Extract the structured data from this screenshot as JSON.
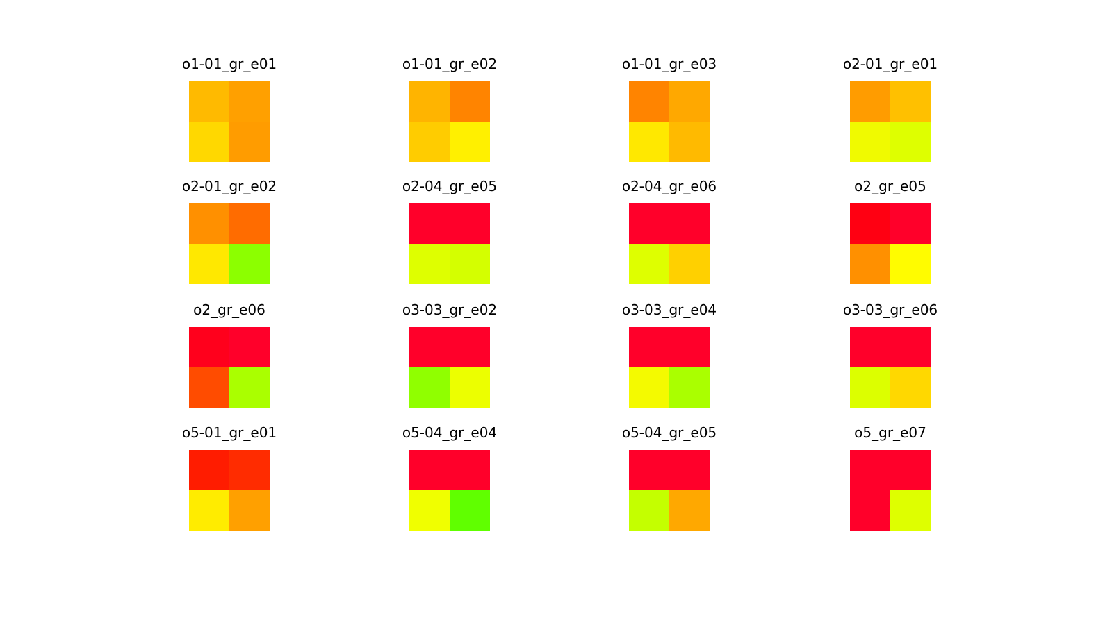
{
  "chart_data": {
    "type": "heatmap",
    "colormap": "red-yellow-green",
    "grid": false,
    "panels": [
      {
        "title": "o1-01_gr_e01",
        "cells": [
          [
            "#ffba00",
            "#ffa000"
          ],
          [
            "#ffd800",
            "#ff9c00"
          ]
        ]
      },
      {
        "title": "o1-01_gr_e02",
        "cells": [
          [
            "#ffb400",
            "#ff8400"
          ],
          [
            "#ffcc00",
            "#fff000"
          ]
        ]
      },
      {
        "title": "o1-01_gr_e03",
        "cells": [
          [
            "#ff8400",
            "#ffa800"
          ],
          [
            "#ffe800",
            "#ffba00"
          ]
        ]
      },
      {
        "title": "o2-01_gr_e01",
        "cells": [
          [
            "#ff9c00",
            "#ffc000"
          ],
          [
            "#f0fa00",
            "#deff00"
          ]
        ]
      },
      {
        "title": "o2-01_gr_e02",
        "cells": [
          [
            "#ff9000",
            "#ff6c00"
          ],
          [
            "#ffe800",
            "#8cff00"
          ]
        ]
      },
      {
        "title": "o2-04_gr_e05",
        "cells": [
          [
            "#ff002a",
            "#ff002a"
          ],
          [
            "#deff00",
            "#d4ff00"
          ]
        ]
      },
      {
        "title": "o2-04_gr_e06",
        "cells": [
          [
            "#ff002a",
            "#ff002a"
          ],
          [
            "#deff00",
            "#ffd000"
          ]
        ]
      },
      {
        "title": "o2_gr_e05",
        "cells": [
          [
            "#ff0012",
            "#ff002a"
          ],
          [
            "#ff9000",
            "#fffc00"
          ]
        ]
      },
      {
        "title": "o2_gr_e06",
        "cells": [
          [
            "#ff001c",
            "#ff002a"
          ],
          [
            "#ff4c00",
            "#aaff00"
          ]
        ]
      },
      {
        "title": "o3-03_gr_e02",
        "cells": [
          [
            "#ff002a",
            "#ff002a"
          ],
          [
            "#90ff00",
            "#ecff00"
          ]
        ]
      },
      {
        "title": "o3-03_gr_e04",
        "cells": [
          [
            "#ff002a",
            "#ff002a"
          ],
          [
            "#f4fa00",
            "#aaff00"
          ]
        ]
      },
      {
        "title": "o3-03_gr_e06",
        "cells": [
          [
            "#ff002a",
            "#ff002a"
          ],
          [
            "#dcff00",
            "#ffd800"
          ]
        ]
      },
      {
        "title": "o5-01_gr_e01",
        "cells": [
          [
            "#ff1c00",
            "#ff2c00"
          ],
          [
            "#ffec00",
            "#ffa000"
          ]
        ]
      },
      {
        "title": "o5-04_gr_e04",
        "cells": [
          [
            "#ff002a",
            "#ff002a"
          ],
          [
            "#f0ff00",
            "#60ff00"
          ]
        ]
      },
      {
        "title": "o5-04_gr_e05",
        "cells": [
          [
            "#ff002a",
            "#ff002a"
          ],
          [
            "#c4ff00",
            "#ffa800"
          ]
        ]
      },
      {
        "title": "o5_gr_e07",
        "cells": [
          [
            "#ff002a",
            "#ff002a"
          ],
          [
            "#ff002a",
            "#deff00"
          ]
        ]
      }
    ]
  }
}
